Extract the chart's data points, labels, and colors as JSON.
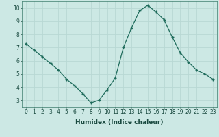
{
  "x": [
    0,
    1,
    2,
    3,
    4,
    5,
    6,
    7,
    8,
    9,
    10,
    11,
    12,
    13,
    14,
    15,
    16,
    17,
    18,
    19,
    20,
    21,
    22,
    23
  ],
  "y": [
    7.3,
    6.8,
    6.3,
    5.8,
    5.3,
    4.6,
    4.1,
    3.5,
    2.8,
    3.0,
    3.8,
    4.7,
    7.0,
    8.5,
    9.8,
    10.2,
    9.7,
    9.1,
    7.8,
    6.6,
    5.9,
    5.3,
    5.0,
    4.6
  ],
  "xlabel": "Humidex (Indice chaleur)",
  "xlim": [
    -0.5,
    23.5
  ],
  "ylim": [
    2.5,
    10.5
  ],
  "yticks": [
    3,
    4,
    5,
    6,
    7,
    8,
    9,
    10
  ],
  "xticks": [
    0,
    1,
    2,
    3,
    4,
    5,
    6,
    7,
    8,
    9,
    10,
    11,
    12,
    13,
    14,
    15,
    16,
    17,
    18,
    19,
    20,
    21,
    22,
    23
  ],
  "bg_color": "#cce8e4",
  "line_color": "#1e6b5b",
  "marker_color": "#1e6b5b",
  "grid_color": "#b8d8d4",
  "label_fontsize": 6.5,
  "tick_fontsize": 5.5
}
